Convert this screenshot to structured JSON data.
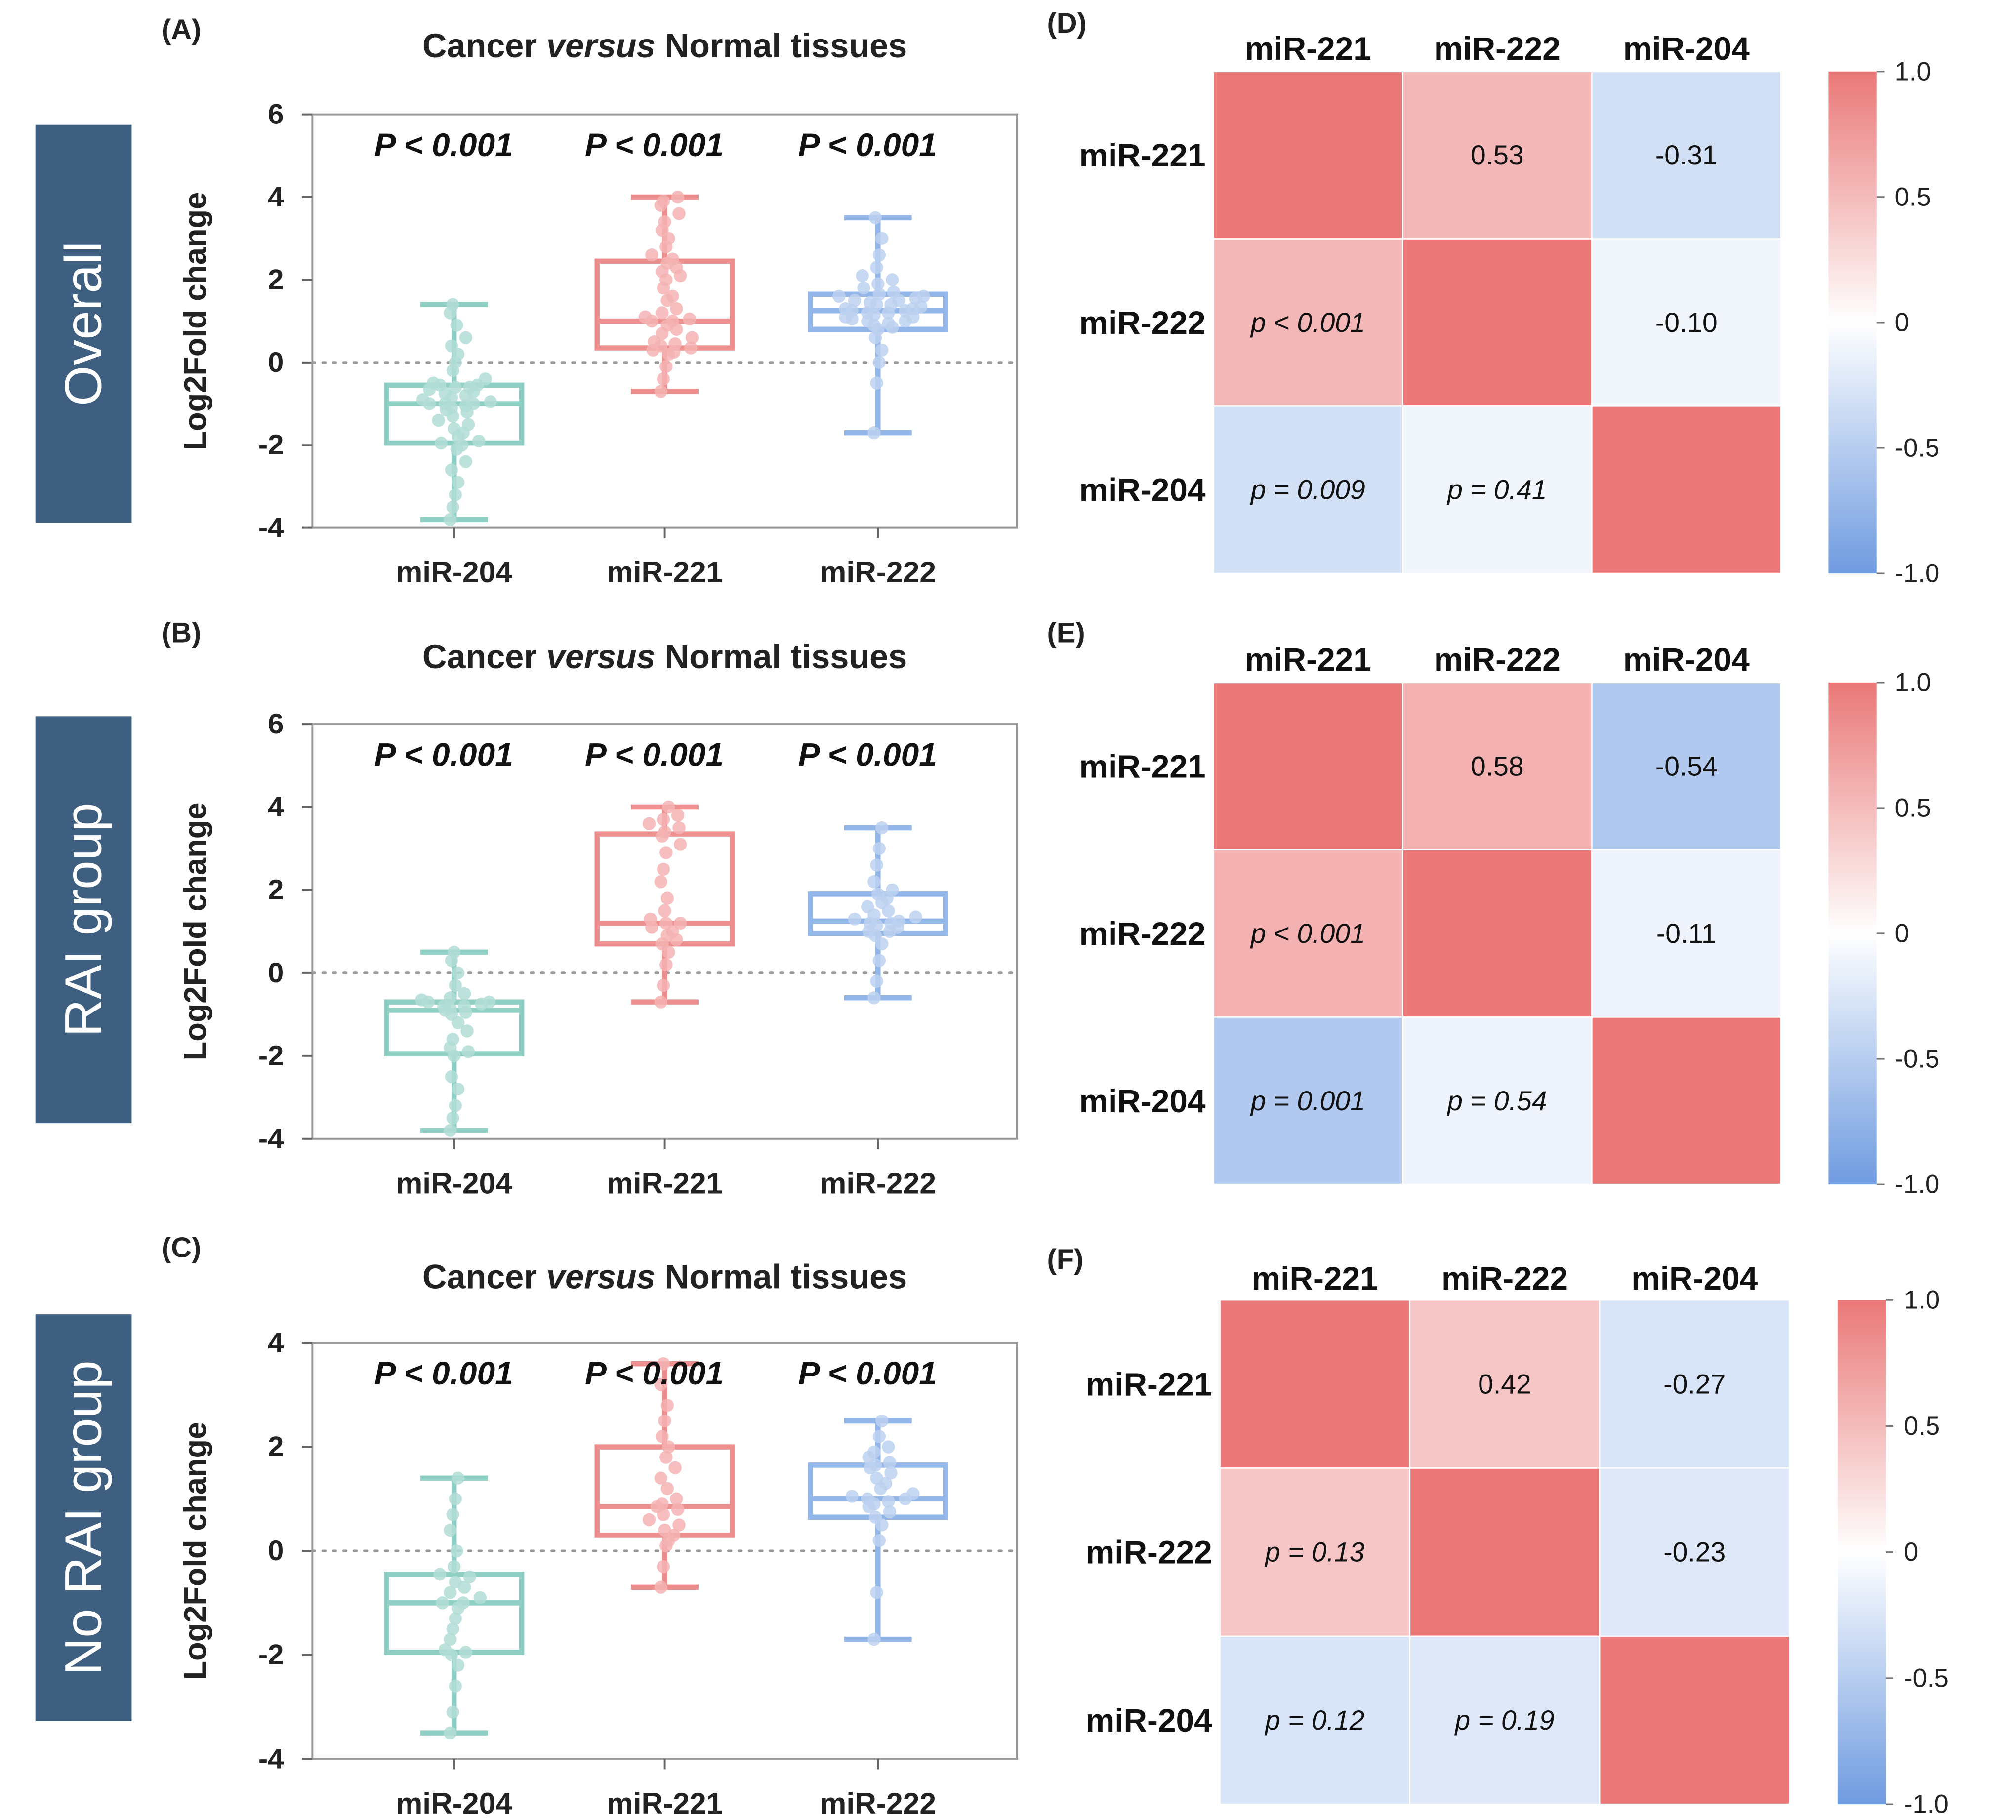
{
  "colors": {
    "mir204": "#8fcfc4",
    "mir221": "#ee8f8f",
    "mir222": "#93b6e8",
    "mir204_point": "#b2ddd6",
    "mir221_point": "#f4b3b3",
    "mir222_point": "#bcd1f0",
    "side_label_bg": "#3e5f7f",
    "heat_high": "#ea7878",
    "heat_mid": "#ffffff",
    "heat_low": "#6f9be0",
    "axis": "#999999"
  },
  "chart_data": [
    {
      "id": "A",
      "type": "box",
      "panel_label": "(A)",
      "title_pre": "Cancer ",
      "title_em": "versus",
      "title_post": " Normal tissues",
      "side_label": "Overall",
      "ylabel": "Log2Fold change",
      "ylim": [
        -4,
        6
      ],
      "yticks": [
        -4,
        -2,
        0,
        2,
        4,
        6
      ],
      "categories": [
        "miR-204",
        "miR-221",
        "miR-222"
      ],
      "pvalues": [
        "P < 0.001",
        "P < 0.001",
        "P < 0.001"
      ],
      "series": [
        {
          "name": "miR-204",
          "color_key": "mir204",
          "min": -3.8,
          "q1": -1.95,
          "median": -1.0,
          "q3": -0.55,
          "max": 1.4,
          "points": [
            -3.8,
            -3.5,
            -3.2,
            -2.9,
            -2.6,
            -2.4,
            -2.1,
            -2.0,
            -1.95,
            -1.9,
            -1.8,
            -1.7,
            -1.6,
            -1.5,
            -1.4,
            -1.3,
            -1.2,
            -1.15,
            -1.1,
            -1.05,
            -1.0,
            -1.0,
            -1.0,
            -0.95,
            -0.9,
            -0.85,
            -0.8,
            -0.75,
            -0.7,
            -0.65,
            -0.6,
            -0.6,
            -0.55,
            -0.55,
            -0.5,
            -0.4,
            -0.2,
            0.0,
            0.2,
            0.4,
            0.6,
            0.9,
            1.2,
            1.4
          ]
        },
        {
          "name": "miR-221",
          "color_key": "mir221",
          "min": -0.7,
          "q1": 0.35,
          "median": 1.0,
          "q3": 2.45,
          "max": 4.0,
          "points": [
            -0.7,
            -0.4,
            -0.1,
            0.2,
            0.25,
            0.3,
            0.35,
            0.4,
            0.45,
            0.5,
            0.6,
            0.7,
            0.8,
            0.9,
            1.0,
            1.0,
            1.05,
            1.1,
            1.2,
            1.3,
            1.5,
            1.6,
            1.8,
            2.0,
            2.1,
            2.2,
            2.3,
            2.4,
            2.5,
            2.6,
            2.8,
            3.0,
            3.2,
            3.4,
            3.6,
            3.8,
            3.9,
            4.0
          ]
        },
        {
          "name": "miR-222",
          "color_key": "mir222",
          "min": -1.7,
          "q1": 0.8,
          "median": 1.25,
          "q3": 1.65,
          "max": 3.5,
          "points": [
            -1.7,
            -0.5,
            0.0,
            0.3,
            0.6,
            0.8,
            0.85,
            0.9,
            0.95,
            1.0,
            1.0,
            1.05,
            1.1,
            1.1,
            1.15,
            1.2,
            1.2,
            1.25,
            1.25,
            1.3,
            1.3,
            1.35,
            1.4,
            1.4,
            1.45,
            1.5,
            1.5,
            1.55,
            1.6,
            1.6,
            1.65,
            1.7,
            1.8,
            1.9,
            2.0,
            2.1,
            2.3,
            2.6,
            3.0,
            3.5
          ]
        }
      ]
    },
    {
      "id": "B",
      "type": "box",
      "panel_label": "(B)",
      "title_pre": "Cancer ",
      "title_em": "versus",
      "title_post": " Normal tissues",
      "side_label": "RAI group",
      "ylabel": "Log2Fold change",
      "ylim": [
        -4,
        6
      ],
      "yticks": [
        -4,
        -2,
        0,
        2,
        4,
        6
      ],
      "categories": [
        "miR-204",
        "miR-221",
        "miR-222"
      ],
      "pvalues": [
        "P < 0.001",
        "P < 0.001",
        "P < 0.001"
      ],
      "series": [
        {
          "name": "miR-204",
          "color_key": "mir204",
          "min": -3.8,
          "q1": -1.95,
          "median": -0.9,
          "q3": -0.7,
          "max": 0.5,
          "points": [
            -3.8,
            -3.5,
            -3.2,
            -2.8,
            -2.5,
            -2.0,
            -1.9,
            -1.8,
            -1.6,
            -1.4,
            -1.2,
            -1.0,
            -0.95,
            -0.9,
            -0.85,
            -0.8,
            -0.8,
            -0.75,
            -0.7,
            -0.7,
            -0.65,
            -0.6,
            -0.5,
            -0.3,
            0.0,
            0.3,
            0.5
          ]
        },
        {
          "name": "miR-221",
          "color_key": "mir221",
          "min": -0.7,
          "q1": 0.7,
          "median": 1.2,
          "q3": 3.35,
          "max": 4.0,
          "points": [
            -0.7,
            -0.3,
            0.2,
            0.5,
            0.7,
            0.8,
            0.9,
            1.0,
            1.1,
            1.2,
            1.2,
            1.3,
            1.5,
            1.8,
            2.2,
            2.5,
            2.9,
            3.1,
            3.3,
            3.4,
            3.5,
            3.6,
            3.7,
            3.8,
            4.0
          ]
        },
        {
          "name": "miR-222",
          "color_key": "mir222",
          "min": -0.6,
          "q1": 0.95,
          "median": 1.25,
          "q3": 1.9,
          "max": 3.5,
          "points": [
            -0.6,
            -0.2,
            0.3,
            0.7,
            0.9,
            1.0,
            1.0,
            1.1,
            1.15,
            1.2,
            1.2,
            1.25,
            1.3,
            1.35,
            1.4,
            1.5,
            1.6,
            1.7,
            1.8,
            1.9,
            2.0,
            2.2,
            2.6,
            3.0,
            3.5
          ]
        }
      ]
    },
    {
      "id": "C",
      "type": "box",
      "panel_label": "(C)",
      "title_pre": "Cancer ",
      "title_em": "versus",
      "title_post": " Normal tissues",
      "side_label": "No RAI group",
      "ylabel": "Log2Fold change",
      "ylim": [
        -4,
        4
      ],
      "yticks": [
        -4,
        -2,
        0,
        2,
        4
      ],
      "categories": [
        "miR-204",
        "miR-221",
        "miR-222"
      ],
      "pvalues": [
        "P < 0.001",
        "P < 0.001",
        "P < 0.001"
      ],
      "series": [
        {
          "name": "miR-204",
          "color_key": "mir204",
          "min": -3.5,
          "q1": -1.95,
          "median": -1.0,
          "q3": -0.45,
          "max": 1.4,
          "points": [
            -3.5,
            -3.1,
            -2.6,
            -2.2,
            -2.0,
            -1.95,
            -1.9,
            -1.7,
            -1.5,
            -1.3,
            -1.1,
            -1.0,
            -1.0,
            -0.9,
            -0.8,
            -0.7,
            -0.6,
            -0.5,
            -0.45,
            -0.3,
            0.0,
            0.4,
            0.7,
            1.0,
            1.4
          ]
        },
        {
          "name": "miR-221",
          "color_key": "mir221",
          "min": -0.7,
          "q1": 0.3,
          "median": 0.85,
          "q3": 2.0,
          "max": 3.6,
          "points": [
            -0.7,
            -0.3,
            0.1,
            0.2,
            0.3,
            0.4,
            0.5,
            0.6,
            0.7,
            0.8,
            0.85,
            0.9,
            1.0,
            1.2,
            1.4,
            1.6,
            1.8,
            2.0,
            2.2,
            2.5,
            2.8,
            3.2,
            3.6
          ]
        },
        {
          "name": "miR-222",
          "color_key": "mir222",
          "min": -1.7,
          "q1": 0.65,
          "median": 1.0,
          "q3": 1.65,
          "max": 2.5,
          "points": [
            -1.7,
            -0.8,
            0.2,
            0.5,
            0.65,
            0.75,
            0.85,
            0.9,
            0.95,
            1.0,
            1.0,
            1.05,
            1.1,
            1.2,
            1.3,
            1.4,
            1.5,
            1.6,
            1.65,
            1.7,
            1.8,
            1.9,
            2.0,
            2.2,
            2.5
          ]
        }
      ]
    },
    {
      "id": "D",
      "type": "heatmap",
      "panel_label": "(D)",
      "labels": [
        "miR-221",
        "miR-222",
        "miR-204"
      ],
      "colorbar_ticks": [
        "1.0",
        "0.5",
        "0",
        "-0.5",
        "-1.0"
      ],
      "cells": [
        {
          "row": 0,
          "col": 0,
          "value": 1.0,
          "text": "",
          "italic": false
        },
        {
          "row": 0,
          "col": 1,
          "value": 0.53,
          "text": "0.53",
          "italic": false
        },
        {
          "row": 0,
          "col": 2,
          "value": -0.31,
          "text": "-0.31",
          "italic": false
        },
        {
          "row": 1,
          "col": 0,
          "value": 0.53,
          "text": "p < 0.001",
          "italic": true
        },
        {
          "row": 1,
          "col": 1,
          "value": 1.0,
          "text": "",
          "italic": false
        },
        {
          "row": 1,
          "col": 2,
          "value": -0.1,
          "text": "-0.10",
          "italic": false
        },
        {
          "row": 2,
          "col": 0,
          "value": -0.31,
          "text": "p = 0.009",
          "italic": true
        },
        {
          "row": 2,
          "col": 1,
          "value": -0.1,
          "text": "p = 0.41",
          "italic": true
        },
        {
          "row": 2,
          "col": 2,
          "value": 1.0,
          "text": "",
          "italic": false
        }
      ]
    },
    {
      "id": "E",
      "type": "heatmap",
      "panel_label": "(E)",
      "labels": [
        "miR-221",
        "miR-222",
        "miR-204"
      ],
      "colorbar_ticks": [
        "1.0",
        "0.5",
        "0",
        "-0.5",
        "-1.0"
      ],
      "cells": [
        {
          "row": 0,
          "col": 0,
          "value": 1.0,
          "text": "",
          "italic": false
        },
        {
          "row": 0,
          "col": 1,
          "value": 0.58,
          "text": "0.58",
          "italic": false
        },
        {
          "row": 0,
          "col": 2,
          "value": -0.54,
          "text": "-0.54",
          "italic": false
        },
        {
          "row": 1,
          "col": 0,
          "value": 0.58,
          "text": "p < 0.001",
          "italic": true
        },
        {
          "row": 1,
          "col": 1,
          "value": 1.0,
          "text": "",
          "italic": false
        },
        {
          "row": 1,
          "col": 2,
          "value": -0.11,
          "text": "-0.11",
          "italic": false
        },
        {
          "row": 2,
          "col": 0,
          "value": -0.54,
          "text": "p = 0.001",
          "italic": true
        },
        {
          "row": 2,
          "col": 1,
          "value": -0.11,
          "text": "p = 0.54",
          "italic": true
        },
        {
          "row": 2,
          "col": 2,
          "value": 1.0,
          "text": "",
          "italic": false
        }
      ]
    },
    {
      "id": "F",
      "type": "heatmap",
      "panel_label": "(F)",
      "labels": [
        "miR-221",
        "miR-222",
        "miR-204"
      ],
      "colorbar_ticks": [
        "1.0",
        "0.5",
        "0",
        "-0.5",
        "-1.0"
      ],
      "cells": [
        {
          "row": 0,
          "col": 0,
          "value": 1.0,
          "text": "",
          "italic": false
        },
        {
          "row": 0,
          "col": 1,
          "value": 0.42,
          "text": "0.42",
          "italic": false
        },
        {
          "row": 0,
          "col": 2,
          "value": -0.27,
          "text": "-0.27",
          "italic": false
        },
        {
          "row": 1,
          "col": 0,
          "value": 0.42,
          "text": "p = 0.13",
          "italic": true
        },
        {
          "row": 1,
          "col": 1,
          "value": 1.0,
          "text": "",
          "italic": false
        },
        {
          "row": 1,
          "col": 2,
          "value": -0.23,
          "text": "-0.23",
          "italic": false
        },
        {
          "row": 2,
          "col": 0,
          "value": -0.27,
          "text": "p = 0.12",
          "italic": true
        },
        {
          "row": 2,
          "col": 1,
          "value": -0.23,
          "text": "p = 0.19",
          "italic": true
        },
        {
          "row": 2,
          "col": 2,
          "value": 1.0,
          "text": "",
          "italic": false
        }
      ]
    }
  ]
}
